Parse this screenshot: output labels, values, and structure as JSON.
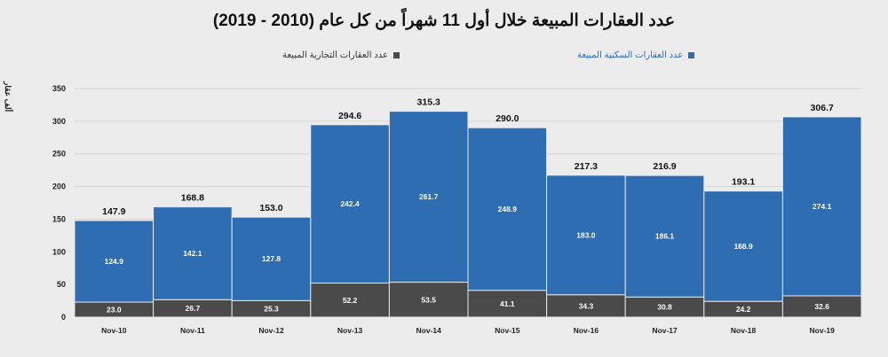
{
  "chart_data": {
    "type": "stacked-bar",
    "title": "عدد العقارات المبيعة خلال أول 11 شهراً من كل عام (2010 - 2019)",
    "ylabel": "ألف عقار",
    "xlabel": "",
    "ylim": [
      0,
      350
    ],
    "yticks": [
      0,
      50,
      100,
      150,
      200,
      250,
      300,
      350
    ],
    "grid": true,
    "legend_position": "top",
    "categories": [
      "Nov-10",
      "Nov-11",
      "Nov-12",
      "Nov-13",
      "Nov-14",
      "Nov-15",
      "Nov-16",
      "Nov-17",
      "Nov-18",
      "Nov-19"
    ],
    "series": [
      {
        "name": "عدد العقارات التجارية المبيعة",
        "color": "#4a4a4a",
        "values": [
          23.0,
          26.7,
          25.3,
          52.2,
          53.5,
          41.1,
          34.3,
          30.8,
          24.2,
          32.6
        ]
      },
      {
        "name": "عدد العقارات السكنية المبيعة",
        "color": "#2f6db3",
        "values": [
          124.9,
          142.1,
          127.8,
          242.4,
          261.7,
          248.9,
          183.0,
          186.1,
          168.9,
          274.1
        ]
      }
    ],
    "totals": [
      "147.9",
      "168.8",
      "153.0",
      "294.6",
      "315.3",
      "290.0",
      "217.3",
      "216.9",
      "193.1",
      "306.7"
    ]
  }
}
